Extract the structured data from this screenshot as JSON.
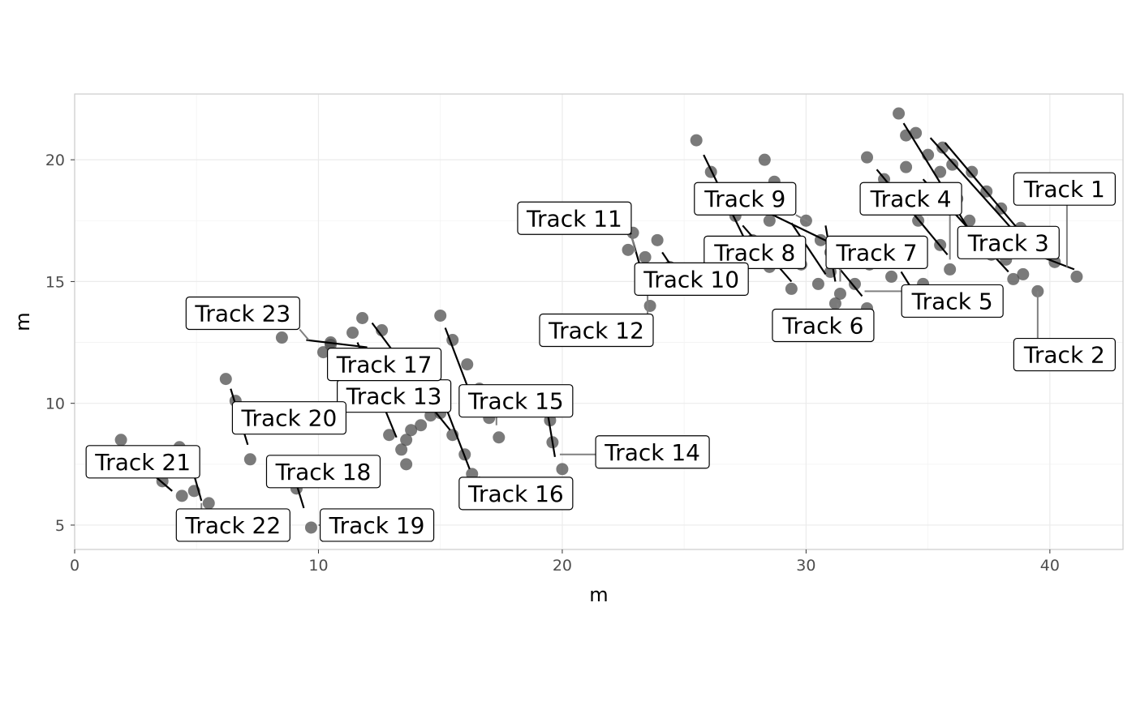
{
  "chart_data": {
    "type": "scatter",
    "xlabel": "m",
    "ylabel": "m",
    "xlim": [
      0,
      43
    ],
    "ylim": [
      4,
      22.7
    ],
    "x_ticks": [
      0,
      10,
      20,
      30,
      40
    ],
    "y_ticks": [
      5,
      10,
      15,
      20
    ],
    "grid": true,
    "colors": {
      "point": "#4d4d4d",
      "segment": "#000000",
      "leader": "#808080",
      "grid_major": "#ebebeb",
      "grid_minor": "#f3f3f3",
      "panel_border": "#cccccc"
    },
    "points": [
      [
        1.9,
        8.5
      ],
      [
        2.6,
        7.6
      ],
      [
        3.6,
        6.8
      ],
      [
        4.3,
        8.2
      ],
      [
        4.4,
        6.2
      ],
      [
        4.8,
        7.3
      ],
      [
        4.9,
        6.4
      ],
      [
        5.5,
        5.9
      ],
      [
        6.2,
        11.0
      ],
      [
        6.6,
        10.1
      ],
      [
        6.9,
        9.0
      ],
      [
        7.2,
        7.7
      ],
      [
        8.5,
        12.7
      ],
      [
        8.6,
        7.6
      ],
      [
        9.1,
        6.5
      ],
      [
        9.7,
        4.9
      ],
      [
        10.2,
        12.1
      ],
      [
        10.5,
        12.5
      ],
      [
        10.5,
        12.4
      ],
      [
        11.4,
        12.9
      ],
      [
        11.8,
        13.5
      ],
      [
        11.8,
        12.1
      ],
      [
        12.1,
        11.0
      ],
      [
        12.6,
        13.0
      ],
      [
        12.8,
        9.9
      ],
      [
        12.9,
        8.7
      ],
      [
        13.2,
        12.0
      ],
      [
        13.4,
        8.1
      ],
      [
        13.6,
        8.5
      ],
      [
        13.6,
        7.5
      ],
      [
        13.8,
        8.9
      ],
      [
        14.2,
        9.1
      ],
      [
        14.6,
        9.5
      ],
      [
        14.6,
        10.5
      ],
      [
        15.0,
        9.6
      ],
      [
        15.0,
        13.6
      ],
      [
        15.5,
        12.6
      ],
      [
        15.5,
        8.7
      ],
      [
        16.0,
        7.9
      ],
      [
        16.1,
        11.6
      ],
      [
        16.3,
        7.1
      ],
      [
        16.6,
        10.6
      ],
      [
        17.0,
        9.4
      ],
      [
        17.4,
        8.6
      ],
      [
        19.2,
        10.3
      ],
      [
        19.5,
        9.3
      ],
      [
        19.6,
        8.4
      ],
      [
        20.0,
        7.3
      ],
      [
        22.7,
        16.3
      ],
      [
        22.9,
        17.0
      ],
      [
        23.4,
        16.0
      ],
      [
        23.6,
        14.0
      ],
      [
        23.9,
        16.7
      ],
      [
        24.0,
        14.9
      ],
      [
        24.4,
        15.6
      ],
      [
        25.0,
        14.8
      ],
      [
        25.5,
        20.8
      ],
      [
        26.1,
        19.5
      ],
      [
        26.8,
        18.7
      ],
      [
        27.1,
        17.7
      ],
      [
        27.8,
        16.7
      ],
      [
        28.3,
        20.0
      ],
      [
        28.5,
        15.6
      ],
      [
        28.5,
        17.5
      ],
      [
        28.7,
        19.1
      ],
      [
        29.0,
        16.5
      ],
      [
        29.4,
        14.7
      ],
      [
        29.8,
        15.7
      ],
      [
        30.0,
        17.5
      ],
      [
        30.5,
        14.9
      ],
      [
        30.6,
        16.7
      ],
      [
        31.0,
        16.2
      ],
      [
        31.0,
        15.4
      ],
      [
        31.2,
        14.1
      ],
      [
        31.4,
        14.5
      ],
      [
        32.0,
        14.9
      ],
      [
        32.5,
        20.1
      ],
      [
        32.5,
        13.9
      ],
      [
        32.6,
        15.7
      ],
      [
        33.2,
        19.2
      ],
      [
        33.5,
        15.2
      ],
      [
        33.8,
        21.9
      ],
      [
        34.1,
        21.0
      ],
      [
        34.1,
        18.4
      ],
      [
        34.1,
        19.7
      ],
      [
        34.5,
        21.1
      ],
      [
        34.6,
        17.5
      ],
      [
        34.8,
        14.9
      ],
      [
        35.0,
        20.2
      ],
      [
        35.0,
        18.8
      ],
      [
        35.5,
        16.5
      ],
      [
        35.5,
        19.5
      ],
      [
        35.6,
        20.5
      ],
      [
        35.8,
        18.0
      ],
      [
        35.9,
        15.5
      ],
      [
        36.0,
        19.8
      ],
      [
        36.2,
        18.4
      ],
      [
        36.7,
        17.5
      ],
      [
        36.8,
        19.5
      ],
      [
        37.3,
        16.6
      ],
      [
        37.4,
        18.7
      ],
      [
        37.6,
        16.1
      ],
      [
        38.0,
        18.0
      ],
      [
        38.2,
        15.9
      ],
      [
        38.5,
        15.1
      ],
      [
        38.8,
        17.2
      ],
      [
        38.9,
        15.3
      ],
      [
        39.5,
        14.6
      ],
      [
        40.2,
        15.8
      ],
      [
        41.1,
        15.2
      ]
    ],
    "segments": [
      [
        [
          1.9,
          8.2
        ],
        [
          4.0,
          6.4
        ]
      ],
      [
        [
          4.8,
          7.4
        ],
        [
          5.2,
          6.0
        ]
      ],
      [
        [
          6.4,
          10.6
        ],
        [
          7.1,
          8.3
        ]
      ],
      [
        [
          9.0,
          7.0
        ],
        [
          9.4,
          5.7
        ]
      ],
      [
        [
          9.5,
          12.6
        ],
        [
          12.0,
          12.3
        ]
      ],
      [
        [
          11.6,
          12.5
        ],
        [
          13.2,
          8.6
        ]
      ],
      [
        [
          12.2,
          13.3
        ],
        [
          14.2,
          10.6
        ]
      ],
      [
        [
          13.7,
          11.0
        ],
        [
          15.4,
          8.9
        ]
      ],
      [
        [
          15.2,
          13.1
        ],
        [
          16.3,
          10.2
        ]
      ],
      [
        [
          15.2,
          9.9
        ],
        [
          16.2,
          7.3
        ]
      ],
      [
        [
          19.4,
          9.6
        ],
        [
          19.7,
          7.8
        ]
      ],
      [
        [
          22.8,
          17.0
        ],
        [
          23.4,
          14.9
        ]
      ],
      [
        [
          23.4,
          15.4
        ],
        [
          24.2,
          14.5
        ]
      ],
      [
        [
          24.1,
          16.2
        ],
        [
          24.7,
          15.3
        ]
      ],
      [
        [
          25.8,
          20.2
        ],
        [
          27.6,
          16.5
        ]
      ],
      [
        [
          27.4,
          17.3
        ],
        [
          29.4,
          15.0
        ]
      ],
      [
        [
          28.5,
          17.8
        ],
        [
          31.6,
          16.3
        ]
      ],
      [
        [
          29.4,
          17.4
        ],
        [
          30.8,
          15.3
        ]
      ],
      [
        [
          30.8,
          17.3
        ],
        [
          31.2,
          15.0
        ]
      ],
      [
        [
          30.9,
          16.1
        ],
        [
          32.3,
          14.4
        ]
      ],
      [
        [
          32.9,
          19.6
        ],
        [
          35.8,
          16.1
        ]
      ],
      [
        [
          33.9,
          15.4
        ],
        [
          34.4,
          14.6
        ]
      ],
      [
        [
          34.0,
          21.5
        ],
        [
          36.7,
          17.1
        ]
      ],
      [
        [
          34.8,
          19.2
        ],
        [
          38.3,
          15.4
        ]
      ],
      [
        [
          35.1,
          20.9
        ],
        [
          38.5,
          17.1
        ]
      ],
      [
        [
          35.7,
          20.7
        ],
        [
          39.5,
          16.2
        ]
      ],
      [
        [
          38.4,
          16.5
        ],
        [
          41.0,
          15.5
        ]
      ]
    ],
    "labels": [
      {
        "text": "Track 1",
        "x": 40.6,
        "y": 18.8,
        "anchor": [
          40.7,
          15.6
        ]
      },
      {
        "text": "Track 2",
        "x": 40.6,
        "y": 12.0,
        "anchor": [
          39.5,
          14.6
        ]
      },
      {
        "text": "Track 3",
        "x": 38.3,
        "y": 16.6,
        "anchor": [
          37.3,
          16.6
        ]
      },
      {
        "text": "Track 4",
        "x": 34.3,
        "y": 18.4,
        "anchor": [
          35.9,
          15.9
        ]
      },
      {
        "text": "Track 5",
        "x": 36.0,
        "y": 14.2,
        "anchor": [
          32.4,
          14.6
        ]
      },
      {
        "text": "Track 6",
        "x": 30.7,
        "y": 13.2,
        "anchor": [
          31.3,
          14.1
        ]
      },
      {
        "text": "Track 7",
        "x": 32.9,
        "y": 16.2,
        "anchor": [
          31.4,
          15.0
        ]
      },
      {
        "text": "Track 8",
        "x": 27.9,
        "y": 16.2,
        "anchor": [
          29.4,
          15.7
        ]
      },
      {
        "text": "Track 9",
        "x": 27.5,
        "y": 18.4,
        "anchor": [
          30.2,
          17.4
        ]
      },
      {
        "text": "Track 10",
        "x": 25.3,
        "y": 15.1,
        "anchor": [
          23.9,
          15.1
        ]
      },
      {
        "text": "Track 11",
        "x": 20.5,
        "y": 17.6,
        "anchor": [
          23.0,
          16.2
        ]
      },
      {
        "text": "Track 12",
        "x": 21.4,
        "y": 13.0,
        "anchor": [
          23.5,
          14.5
        ]
      },
      {
        "text": "Track 13",
        "x": 13.1,
        "y": 10.3,
        "anchor": [
          14.7,
          9.7
        ]
      },
      {
        "text": "Track 14",
        "x": 23.7,
        "y": 8.0,
        "anchor": [
          19.9,
          7.9
        ]
      },
      {
        "text": "Track 15",
        "x": 18.1,
        "y": 10.1,
        "anchor": [
          17.3,
          9.1
        ]
      },
      {
        "text": "Track 16",
        "x": 18.1,
        "y": 6.3,
        "anchor": [
          16.6,
          7.0
        ]
      },
      {
        "text": "Track 17",
        "x": 12.7,
        "y": 11.6,
        "anchor": [
          12.3,
          12.2
        ]
      },
      {
        "text": "Track 18",
        "x": 10.2,
        "y": 7.2,
        "anchor": [
          9.4,
          6.8
        ]
      },
      {
        "text": "Track 19",
        "x": 12.4,
        "y": 5.0,
        "anchor": [
          10.0,
          5.0
        ]
      },
      {
        "text": "Track 20",
        "x": 8.8,
        "y": 9.4,
        "anchor": [
          7.3,
          9.4
        ]
      },
      {
        "text": "Track 21",
        "x": 2.8,
        "y": 7.6,
        "anchor": [
          3.0,
          7.8
        ]
      },
      {
        "text": "Track 22",
        "x": 6.5,
        "y": 5.0,
        "anchor": [
          5.2,
          5.9
        ]
      },
      {
        "text": "Track 23",
        "x": 6.9,
        "y": 13.7,
        "anchor": [
          9.6,
          12.6
        ]
      }
    ]
  }
}
